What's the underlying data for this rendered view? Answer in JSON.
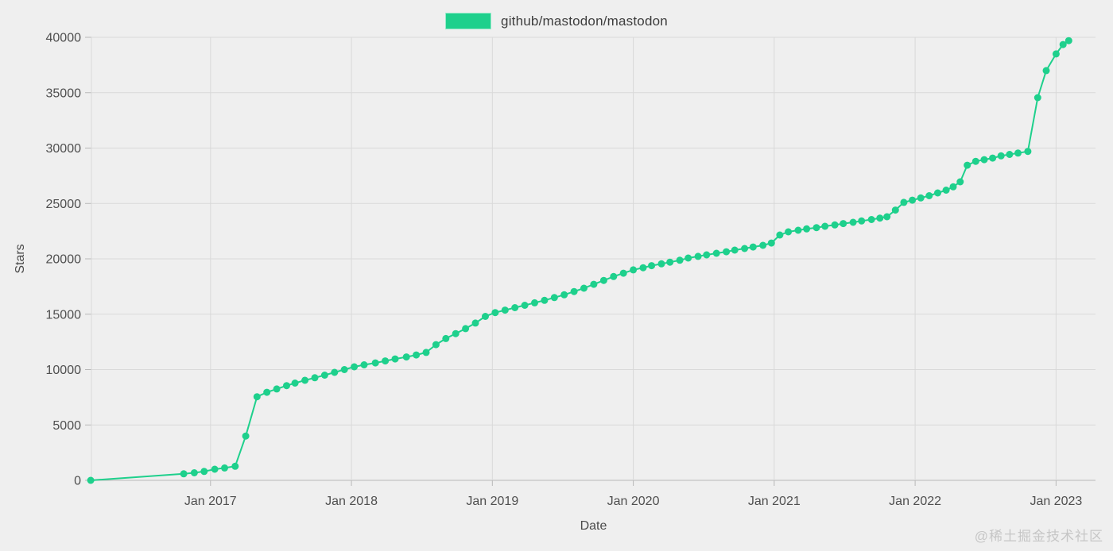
{
  "legend": {
    "series_label": "github/mastodon/mastodon"
  },
  "watermark": "@稀土掘金技术社区",
  "chart_data": {
    "type": "line",
    "title": "",
    "xlabel": "Date",
    "ylabel": "Stars",
    "legend_position": "top-center",
    "grid": true,
    "x_domain": [
      2016.155,
      2023.28
    ],
    "ylim": [
      0,
      40000
    ],
    "y_ticks": [
      0,
      5000,
      10000,
      15000,
      20000,
      25000,
      30000,
      35000,
      40000
    ],
    "x_ticks": [
      {
        "x": 2017,
        "label": "Jan 2017"
      },
      {
        "x": 2018,
        "label": "Jan 2018"
      },
      {
        "x": 2019,
        "label": "Jan 2019"
      },
      {
        "x": 2020,
        "label": "Jan 2020"
      },
      {
        "x": 2021,
        "label": "Jan 2021"
      },
      {
        "x": 2022,
        "label": "Jan 2022"
      },
      {
        "x": 2023,
        "label": "Jan 2023"
      }
    ],
    "colors": {
      "line": "#1ed08c",
      "marker": "#1ed08c",
      "background": "#efefef",
      "grid": "#d9d9d9",
      "axis": "#b8b8b8",
      "tick_text": "#4f4f4f"
    },
    "series": [
      {
        "name": "github/mastodon/mastodon",
        "points": [
          [
            2016.15,
            0
          ],
          [
            2016.81,
            590
          ],
          [
            2016.885,
            680
          ],
          [
            2016.955,
            800
          ],
          [
            2017.03,
            1000
          ],
          [
            2017.1,
            1120
          ],
          [
            2017.175,
            1270
          ],
          [
            2017.25,
            4000
          ],
          [
            2017.33,
            7550
          ],
          [
            2017.4,
            7950
          ],
          [
            2017.47,
            8250
          ],
          [
            2017.54,
            8550
          ],
          [
            2017.6,
            8780
          ],
          [
            2017.67,
            9030
          ],
          [
            2017.74,
            9260
          ],
          [
            2017.81,
            9500
          ],
          [
            2017.88,
            9750
          ],
          [
            2017.95,
            10000
          ],
          [
            2018.02,
            10250
          ],
          [
            2018.09,
            10430
          ],
          [
            2018.17,
            10600
          ],
          [
            2018.24,
            10780
          ],
          [
            2018.31,
            10960
          ],
          [
            2018.39,
            11140
          ],
          [
            2018.46,
            11320
          ],
          [
            2018.53,
            11550
          ],
          [
            2018.6,
            12250
          ],
          [
            2018.67,
            12800
          ],
          [
            2018.74,
            13250
          ],
          [
            2018.81,
            13700
          ],
          [
            2018.88,
            14200
          ],
          [
            2018.95,
            14800
          ],
          [
            2019.02,
            15150
          ],
          [
            2019.09,
            15370
          ],
          [
            2019.16,
            15590
          ],
          [
            2019.23,
            15810
          ],
          [
            2019.3,
            16030
          ],
          [
            2019.37,
            16250
          ],
          [
            2019.44,
            16500
          ],
          [
            2019.51,
            16750
          ],
          [
            2019.58,
            17050
          ],
          [
            2019.65,
            17350
          ],
          [
            2019.72,
            17700
          ],
          [
            2019.79,
            18050
          ],
          [
            2019.86,
            18400
          ],
          [
            2019.93,
            18700
          ],
          [
            2020.0,
            19000
          ],
          [
            2020.07,
            19200
          ],
          [
            2020.13,
            19380
          ],
          [
            2020.2,
            19550
          ],
          [
            2020.26,
            19700
          ],
          [
            2020.33,
            19870
          ],
          [
            2020.39,
            20070
          ],
          [
            2020.46,
            20220
          ],
          [
            2020.52,
            20360
          ],
          [
            2020.59,
            20500
          ],
          [
            2020.66,
            20640
          ],
          [
            2020.72,
            20790
          ],
          [
            2020.79,
            20930
          ],
          [
            2020.85,
            21070
          ],
          [
            2020.92,
            21220
          ],
          [
            2020.98,
            21430
          ],
          [
            2021.04,
            22150
          ],
          [
            2021.1,
            22440
          ],
          [
            2021.17,
            22580
          ],
          [
            2021.23,
            22700
          ],
          [
            2021.3,
            22820
          ],
          [
            2021.36,
            22940
          ],
          [
            2021.43,
            23060
          ],
          [
            2021.49,
            23180
          ],
          [
            2021.56,
            23300
          ],
          [
            2021.62,
            23420
          ],
          [
            2021.69,
            23550
          ],
          [
            2021.75,
            23680
          ],
          [
            2021.8,
            23800
          ],
          [
            2021.86,
            24400
          ],
          [
            2021.92,
            25100
          ],
          [
            2021.98,
            25300
          ],
          [
            2022.04,
            25500
          ],
          [
            2022.1,
            25700
          ],
          [
            2022.16,
            25950
          ],
          [
            2022.22,
            26200
          ],
          [
            2022.27,
            26500
          ],
          [
            2022.32,
            26950
          ],
          [
            2022.37,
            28450
          ],
          [
            2022.43,
            28800
          ],
          [
            2022.49,
            28950
          ],
          [
            2022.55,
            29100
          ],
          [
            2022.61,
            29300
          ],
          [
            2022.67,
            29430
          ],
          [
            2022.73,
            29550
          ],
          [
            2022.8,
            29700
          ],
          [
            2022.87,
            34550
          ],
          [
            2022.93,
            37000
          ],
          [
            2023.0,
            38500
          ],
          [
            2023.05,
            39350
          ],
          [
            2023.09,
            39700
          ]
        ]
      }
    ]
  }
}
